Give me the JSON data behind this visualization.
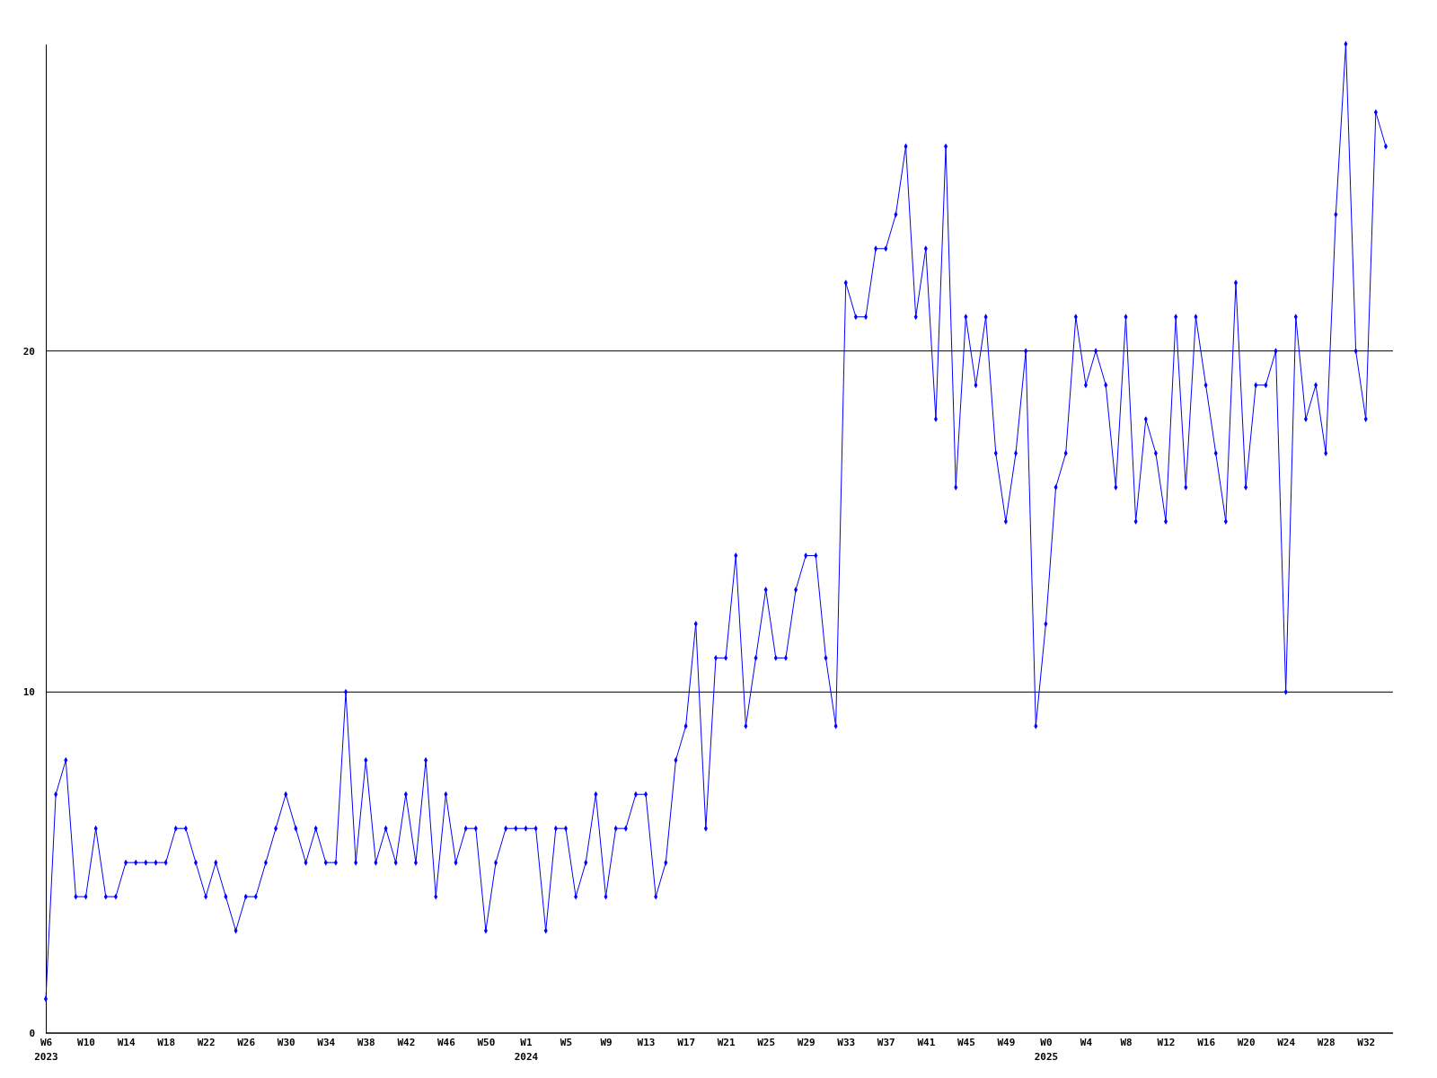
{
  "chart_data": {
    "type": "line",
    "categories": [
      "W6\n2023",
      null,
      null,
      null,
      "W10",
      null,
      null,
      null,
      "W14",
      null,
      null,
      null,
      "W18",
      null,
      null,
      null,
      "W22",
      null,
      null,
      null,
      "W26",
      null,
      null,
      null,
      "W30",
      null,
      null,
      null,
      "W34",
      null,
      null,
      null,
      "W38",
      null,
      null,
      null,
      "W42",
      null,
      null,
      null,
      "W46",
      null,
      null,
      null,
      "W50",
      null,
      null,
      null,
      "W1\n2024",
      null,
      null,
      null,
      "W5",
      null,
      null,
      null,
      "W9",
      null,
      null,
      null,
      "W13",
      null,
      null,
      null,
      "W17",
      null,
      null,
      null,
      "W21",
      null,
      null,
      null,
      "W25",
      null,
      null,
      null,
      "W29",
      null,
      null,
      null,
      "W33",
      null,
      null,
      null,
      "W37",
      null,
      null,
      null,
      "W41",
      null,
      null,
      null,
      "W45",
      null,
      null,
      null,
      "W49",
      null,
      null,
      null,
      "W0\n2025",
      null,
      null,
      null,
      "W4",
      null,
      null,
      null,
      "W8",
      null,
      null,
      null,
      "W12",
      null,
      null,
      null,
      "W16",
      null,
      null,
      null,
      "W20",
      null,
      null,
      null,
      "W24",
      null,
      null,
      null,
      "W28",
      null,
      null,
      null,
      "W32",
      null,
      null
    ],
    "series": [
      {
        "color": "#0000ff",
        "values": [
          1,
          7,
          8,
          4,
          4,
          6,
          4,
          4,
          5,
          5,
          5,
          5,
          5,
          6,
          6,
          5,
          4,
          5,
          4,
          3,
          4,
          4,
          5,
          6,
          7,
          6,
          5,
          6,
          5,
          5,
          10,
          5,
          8,
          5,
          6,
          5,
          7,
          5,
          8,
          4,
          7,
          5,
          6,
          6,
          3,
          5,
          6,
          6,
          6,
          6,
          3,
          6,
          6,
          4,
          5,
          7,
          4,
          6,
          6,
          7,
          7,
          4,
          5,
          8,
          9,
          12,
          6,
          11,
          11,
          14,
          9,
          11,
          13,
          11,
          11,
          13,
          14,
          14,
          11,
          9,
          22,
          21,
          21,
          23,
          23,
          24,
          26,
          21,
          23,
          18,
          26,
          16,
          21,
          19,
          21,
          17,
          15,
          17,
          20,
          9,
          12,
          16,
          17,
          21,
          19,
          20,
          19,
          16,
          21,
          15,
          18,
          17,
          15,
          21,
          16,
          21,
          19,
          17,
          15,
          22,
          16,
          19,
          19,
          20,
          10,
          21,
          18,
          19,
          17,
          24,
          29,
          20,
          18,
          27,
          26
        ]
      }
    ],
    "ylim": [
      0,
      29
    ],
    "yticks": [
      0,
      10,
      20
    ],
    "grid": "y",
    "marker": "diamond",
    "line_style": "solid"
  }
}
